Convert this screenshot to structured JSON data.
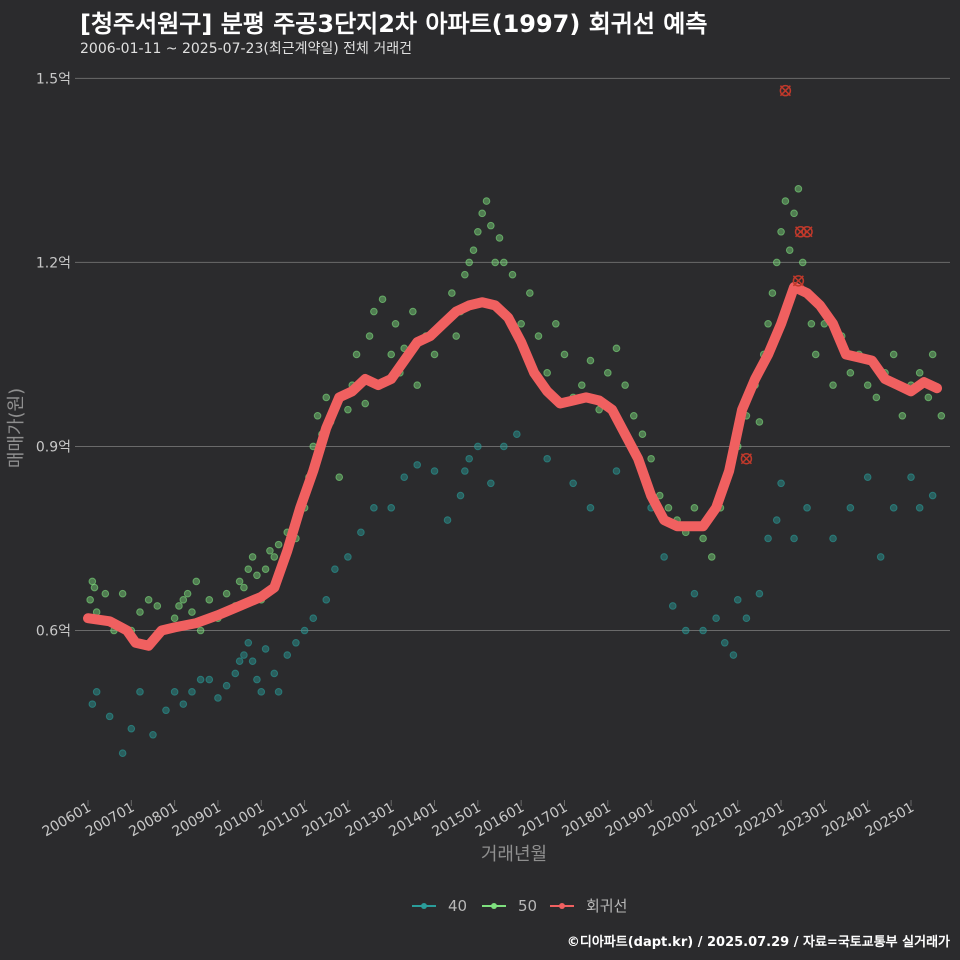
{
  "title": "[청주서원구] 분평 주공3단지2차 아파트(1997) 회귀선 예측",
  "subtitle": "2006-01-11 ~ 2025-07-23(최근계약일) 전체 거래건",
  "caption": "©디아파트(dapt.kr) / 2025.07.29 / 자료=국토교통부 실거래가",
  "colors": {
    "background": "#2b2b2d",
    "grid": "#6a6a6a",
    "size40": "#2a9d9a",
    "size50": "#7ee07e",
    "regression": "#f06060",
    "outlier": "#c0392b"
  },
  "chart_data": {
    "type": "scatter",
    "xlabel": "거래년월",
    "ylabel": "매매가(원)",
    "x_ticks": [
      "200601",
      "200701",
      "200801",
      "200901",
      "201001",
      "201101",
      "201201",
      "201301",
      "201401",
      "201501",
      "201601",
      "201701",
      "201801",
      "201901",
      "202001",
      "202101",
      "202201",
      "202301",
      "202401",
      "202501"
    ],
    "y_ticks": [
      {
        "value": 0.6,
        "label": "0.6억"
      },
      {
        "value": 0.9,
        "label": "0.9억"
      },
      {
        "value": 1.2,
        "label": "1.2억"
      },
      {
        "value": 1.5,
        "label": "1.5억"
      }
    ],
    "xlim": [
      2005.7,
      2025.9
    ],
    "ylim": [
      0.34,
      1.53
    ],
    "grid": true,
    "legend_position": "bottom",
    "legend": [
      "40",
      "50",
      "회귀선"
    ],
    "series": [
      {
        "name": "40",
        "points": [
          [
            2006.1,
            0.48
          ],
          [
            2006.2,
            0.5
          ],
          [
            2006.5,
            0.46
          ],
          [
            2006.8,
            0.4
          ],
          [
            2007.0,
            0.44
          ],
          [
            2007.2,
            0.5
          ],
          [
            2007.5,
            0.43
          ],
          [
            2007.8,
            0.47
          ],
          [
            2008.0,
            0.5
          ],
          [
            2008.2,
            0.48
          ],
          [
            2008.4,
            0.5
          ],
          [
            2008.6,
            0.52
          ],
          [
            2008.8,
            0.52
          ],
          [
            2009.0,
            0.49
          ],
          [
            2009.2,
            0.51
          ],
          [
            2009.4,
            0.53
          ],
          [
            2009.5,
            0.55
          ],
          [
            2009.6,
            0.56
          ],
          [
            2009.7,
            0.58
          ],
          [
            2009.8,
            0.55
          ],
          [
            2009.9,
            0.52
          ],
          [
            2010.0,
            0.5
          ],
          [
            2010.1,
            0.57
          ],
          [
            2010.3,
            0.53
          ],
          [
            2010.4,
            0.5
          ],
          [
            2010.6,
            0.56
          ],
          [
            2010.8,
            0.58
          ],
          [
            2011.0,
            0.6
          ],
          [
            2011.2,
            0.62
          ],
          [
            2011.5,
            0.65
          ],
          [
            2011.7,
            0.7
          ],
          [
            2012.0,
            0.72
          ],
          [
            2012.3,
            0.76
          ],
          [
            2012.6,
            0.8
          ],
          [
            2013.0,
            0.8
          ],
          [
            2013.3,
            0.85
          ],
          [
            2013.6,
            0.87
          ],
          [
            2014.0,
            0.86
          ],
          [
            2014.3,
            0.78
          ],
          [
            2014.6,
            0.82
          ],
          [
            2014.7,
            0.86
          ],
          [
            2014.8,
            0.88
          ],
          [
            2015.0,
            0.9
          ],
          [
            2015.3,
            0.84
          ],
          [
            2015.6,
            0.9
          ],
          [
            2015.9,
            0.92
          ],
          [
            2016.6,
            0.88
          ],
          [
            2017.2,
            0.84
          ],
          [
            2017.6,
            0.8
          ],
          [
            2018.2,
            0.86
          ],
          [
            2019.0,
            0.8
          ],
          [
            2019.3,
            0.72
          ],
          [
            2019.5,
            0.64
          ],
          [
            2019.8,
            0.6
          ],
          [
            2020.0,
            0.66
          ],
          [
            2020.2,
            0.6
          ],
          [
            2020.5,
            0.62
          ],
          [
            2020.7,
            0.58
          ],
          [
            2020.9,
            0.56
          ],
          [
            2021.0,
            0.65
          ],
          [
            2021.2,
            0.62
          ],
          [
            2021.5,
            0.66
          ],
          [
            2021.7,
            0.75
          ],
          [
            2021.9,
            0.78
          ],
          [
            2022.0,
            0.84
          ],
          [
            2022.3,
            0.75
          ],
          [
            2022.6,
            0.8
          ],
          [
            2023.2,
            0.75
          ],
          [
            2023.6,
            0.8
          ],
          [
            2024.0,
            0.85
          ],
          [
            2024.3,
            0.72
          ],
          [
            2024.6,
            0.8
          ],
          [
            2025.0,
            0.85
          ],
          [
            2025.2,
            0.8
          ],
          [
            2025.5,
            0.82
          ]
        ]
      },
      {
        "name": "50",
        "points": [
          [
            2006.0,
            0.62
          ],
          [
            2006.05,
            0.65
          ],
          [
            2006.1,
            0.68
          ],
          [
            2006.15,
            0.67
          ],
          [
            2006.2,
            0.63
          ],
          [
            2006.4,
            0.66
          ],
          [
            2006.6,
            0.6
          ],
          [
            2006.8,
            0.66
          ],
          [
            2007.0,
            0.6
          ],
          [
            2007.2,
            0.63
          ],
          [
            2007.4,
            0.65
          ],
          [
            2007.6,
            0.64
          ],
          [
            2007.8,
            0.6
          ],
          [
            2008.0,
            0.62
          ],
          [
            2008.1,
            0.64
          ],
          [
            2008.2,
            0.65
          ],
          [
            2008.3,
            0.66
          ],
          [
            2008.4,
            0.63
          ],
          [
            2008.5,
            0.68
          ],
          [
            2008.6,
            0.6
          ],
          [
            2008.8,
            0.65
          ],
          [
            2009.0,
            0.62
          ],
          [
            2009.2,
            0.66
          ],
          [
            2009.4,
            0.64
          ],
          [
            2009.5,
            0.68
          ],
          [
            2009.6,
            0.67
          ],
          [
            2009.7,
            0.7
          ],
          [
            2009.8,
            0.72
          ],
          [
            2009.9,
            0.69
          ],
          [
            2010.0,
            0.65
          ],
          [
            2010.1,
            0.7
          ],
          [
            2010.2,
            0.73
          ],
          [
            2010.3,
            0.72
          ],
          [
            2010.4,
            0.74
          ],
          [
            2010.5,
            0.71
          ],
          [
            2010.6,
            0.76
          ],
          [
            2010.8,
            0.75
          ],
          [
            2011.0,
            0.8
          ],
          [
            2011.1,
            0.85
          ],
          [
            2011.2,
            0.9
          ],
          [
            2011.3,
            0.95
          ],
          [
            2011.4,
            0.92
          ],
          [
            2011.5,
            0.98
          ],
          [
            2011.6,
            0.94
          ],
          [
            2011.8,
            0.85
          ],
          [
            2012.0,
            0.96
          ],
          [
            2012.1,
            1.0
          ],
          [
            2012.2,
            1.05
          ],
          [
            2012.4,
            0.97
          ],
          [
            2012.5,
            1.08
          ],
          [
            2012.6,
            1.12
          ],
          [
            2012.8,
            1.14
          ],
          [
            2013.0,
            1.05
          ],
          [
            2013.1,
            1.1
          ],
          [
            2013.2,
            1.02
          ],
          [
            2013.3,
            1.06
          ],
          [
            2013.5,
            1.12
          ],
          [
            2013.6,
            1.0
          ],
          [
            2013.8,
            1.08
          ],
          [
            2014.0,
            1.05
          ],
          [
            2014.2,
            1.1
          ],
          [
            2014.4,
            1.15
          ],
          [
            2014.5,
            1.08
          ],
          [
            2014.6,
            1.12
          ],
          [
            2014.7,
            1.18
          ],
          [
            2014.8,
            1.2
          ],
          [
            2014.9,
            1.22
          ],
          [
            2015.0,
            1.25
          ],
          [
            2015.1,
            1.28
          ],
          [
            2015.2,
            1.3
          ],
          [
            2015.3,
            1.26
          ],
          [
            2015.4,
            1.2
          ],
          [
            2015.5,
            1.24
          ],
          [
            2015.6,
            1.2
          ],
          [
            2015.8,
            1.18
          ],
          [
            2016.0,
            1.1
          ],
          [
            2016.2,
            1.15
          ],
          [
            2016.4,
            1.08
          ],
          [
            2016.6,
            1.02
          ],
          [
            2016.8,
            1.1
          ],
          [
            2017.0,
            1.05
          ],
          [
            2017.2,
            0.98
          ],
          [
            2017.4,
            1.0
          ],
          [
            2017.6,
            1.04
          ],
          [
            2017.8,
            0.96
          ],
          [
            2018.0,
            1.02
          ],
          [
            2018.2,
            1.06
          ],
          [
            2018.4,
            1.0
          ],
          [
            2018.6,
            0.95
          ],
          [
            2018.8,
            0.92
          ],
          [
            2019.0,
            0.88
          ],
          [
            2019.2,
            0.82
          ],
          [
            2019.4,
            0.8
          ],
          [
            2019.6,
            0.78
          ],
          [
            2019.8,
            0.76
          ],
          [
            2020.0,
            0.8
          ],
          [
            2020.2,
            0.75
          ],
          [
            2020.4,
            0.72
          ],
          [
            2020.6,
            0.8
          ],
          [
            2020.8,
            0.86
          ],
          [
            2021.0,
            0.9
          ],
          [
            2021.2,
            0.95
          ],
          [
            2021.4,
            1.0
          ],
          [
            2021.5,
            0.94
          ],
          [
            2021.6,
            1.05
          ],
          [
            2021.7,
            1.1
          ],
          [
            2021.8,
            1.15
          ],
          [
            2021.9,
            1.2
          ],
          [
            2022.0,
            1.25
          ],
          [
            2022.1,
            1.3
          ],
          [
            2022.2,
            1.22
          ],
          [
            2022.3,
            1.28
          ],
          [
            2022.4,
            1.32
          ],
          [
            2022.5,
            1.2
          ],
          [
            2022.6,
            1.15
          ],
          [
            2022.7,
            1.1
          ],
          [
            2022.8,
            1.05
          ],
          [
            2023.0,
            1.1
          ],
          [
            2023.2,
            1.0
          ],
          [
            2023.4,
            1.08
          ],
          [
            2023.6,
            1.02
          ],
          [
            2023.8,
            1.05
          ],
          [
            2024.0,
            1.0
          ],
          [
            2024.2,
            0.98
          ],
          [
            2024.4,
            1.02
          ],
          [
            2024.6,
            1.05
          ],
          [
            2024.8,
            0.95
          ],
          [
            2025.0,
            1.0
          ],
          [
            2025.2,
            1.02
          ],
          [
            2025.4,
            0.98
          ],
          [
            2025.5,
            1.05
          ],
          [
            2025.7,
            0.95
          ]
        ]
      },
      {
        "name": "회귀선",
        "points": [
          [
            2006.0,
            0.62
          ],
          [
            2006.5,
            0.615
          ],
          [
            2006.9,
            0.6
          ],
          [
            2007.1,
            0.58
          ],
          [
            2007.4,
            0.575
          ],
          [
            2007.7,
            0.6
          ],
          [
            2008.0,
            0.605
          ],
          [
            2008.5,
            0.612
          ],
          [
            2009.0,
            0.625
          ],
          [
            2009.5,
            0.64
          ],
          [
            2010.0,
            0.655
          ],
          [
            2010.3,
            0.67
          ],
          [
            2010.6,
            0.73
          ],
          [
            2010.9,
            0.8
          ],
          [
            2011.2,
            0.86
          ],
          [
            2011.5,
            0.93
          ],
          [
            2011.8,
            0.98
          ],
          [
            2012.1,
            0.99
          ],
          [
            2012.4,
            1.01
          ],
          [
            2012.7,
            1.0
          ],
          [
            2013.0,
            1.01
          ],
          [
            2013.3,
            1.04
          ],
          [
            2013.6,
            1.07
          ],
          [
            2013.9,
            1.08
          ],
          [
            2014.2,
            1.1
          ],
          [
            2014.5,
            1.12
          ],
          [
            2014.8,
            1.13
          ],
          [
            2015.1,
            1.135
          ],
          [
            2015.4,
            1.13
          ],
          [
            2015.7,
            1.11
          ],
          [
            2016.0,
            1.07
          ],
          [
            2016.3,
            1.02
          ],
          [
            2016.6,
            0.99
          ],
          [
            2016.9,
            0.97
          ],
          [
            2017.2,
            0.975
          ],
          [
            2017.5,
            0.98
          ],
          [
            2017.8,
            0.975
          ],
          [
            2018.1,
            0.96
          ],
          [
            2018.4,
            0.92
          ],
          [
            2018.7,
            0.88
          ],
          [
            2019.0,
            0.82
          ],
          [
            2019.3,
            0.78
          ],
          [
            2019.6,
            0.77
          ],
          [
            2019.9,
            0.77
          ],
          [
            2020.2,
            0.77
          ],
          [
            2020.5,
            0.8
          ],
          [
            2020.8,
            0.86
          ],
          [
            2021.1,
            0.96
          ],
          [
            2021.4,
            1.01
          ],
          [
            2021.7,
            1.05
          ],
          [
            2022.0,
            1.1
          ],
          [
            2022.3,
            1.16
          ],
          [
            2022.6,
            1.15
          ],
          [
            2022.9,
            1.13
          ],
          [
            2023.2,
            1.1
          ],
          [
            2023.5,
            1.05
          ],
          [
            2023.8,
            1.045
          ],
          [
            2024.1,
            1.04
          ],
          [
            2024.4,
            1.01
          ],
          [
            2024.7,
            1.0
          ],
          [
            2025.0,
            0.99
          ],
          [
            2025.3,
            1.005
          ],
          [
            2025.6,
            0.995
          ]
        ]
      }
    ],
    "outliers": [
      [
        2021.2,
        0.88
      ],
      [
        2022.1,
        1.48
      ],
      [
        2022.45,
        1.25
      ],
      [
        2022.6,
        1.25
      ],
      [
        2022.4,
        1.17
      ]
    ]
  }
}
